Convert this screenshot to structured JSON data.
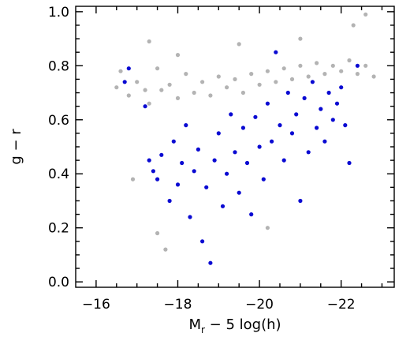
{
  "chart_data": {
    "type": "scatter",
    "xlabel_main": "M",
    "xlabel_sub": "r",
    "xlabel_rest": " − 5 log(h)",
    "ylabel": "g − r",
    "xlim": [
      -15.5,
      -23.3
    ],
    "ylim": [
      -0.02,
      1.02
    ],
    "x_ticks": [
      -16,
      -18,
      -20,
      -22
    ],
    "x_tick_labels": [
      "−16",
      "−18",
      "−20",
      "−22"
    ],
    "y_ticks": [
      0.0,
      0.2,
      0.4,
      0.6,
      0.8,
      1.0
    ],
    "y_tick_labels": [
      "0.0",
      "0.2",
      "0.4",
      "0.6",
      "0.8",
      "1.0"
    ],
    "grid": false,
    "series": [
      {
        "color": "#b3b3b3",
        "points": [
          [
            -16.5,
            0.72
          ],
          [
            -16.6,
            0.78
          ],
          [
            -16.8,
            0.69
          ],
          [
            -17.0,
            0.74
          ],
          [
            -17.2,
            0.71
          ],
          [
            -17.3,
            0.66
          ],
          [
            -17.5,
            0.79
          ],
          [
            -17.6,
            0.71
          ],
          [
            -17.8,
            0.73
          ],
          [
            -18.0,
            0.68
          ],
          [
            -18.2,
            0.77
          ],
          [
            -18.4,
            0.7
          ],
          [
            -18.6,
            0.74
          ],
          [
            -18.8,
            0.69
          ],
          [
            -19.0,
            0.76
          ],
          [
            -19.2,
            0.72
          ],
          [
            -19.4,
            0.75
          ],
          [
            -19.6,
            0.7
          ],
          [
            -19.8,
            0.77
          ],
          [
            -20.0,
            0.73
          ],
          [
            -20.2,
            0.78
          ],
          [
            -20.4,
            0.74
          ],
          [
            -20.6,
            0.79
          ],
          [
            -20.8,
            0.75
          ],
          [
            -21.0,
            0.8
          ],
          [
            -21.2,
            0.76
          ],
          [
            -21.4,
            0.81
          ],
          [
            -21.6,
            0.77
          ],
          [
            -21.8,
            0.8
          ],
          [
            -22.0,
            0.78
          ],
          [
            -22.2,
            0.82
          ],
          [
            -22.4,
            0.77
          ],
          [
            -22.6,
            0.8
          ],
          [
            -22.8,
            0.76
          ],
          [
            -17.3,
            0.89
          ],
          [
            -18.0,
            0.84
          ],
          [
            -19.5,
            0.88
          ],
          [
            -21.0,
            0.9
          ],
          [
            -22.3,
            0.95
          ],
          [
            -22.6,
            0.99
          ],
          [
            -17.5,
            0.18
          ],
          [
            -17.7,
            0.12
          ],
          [
            -20.2,
            0.2
          ],
          [
            -16.9,
            0.38
          ]
        ]
      },
      {
        "color": "#0a0ad2",
        "points": [
          [
            -16.8,
            0.79
          ],
          [
            -16.7,
            0.74
          ],
          [
            -17.2,
            0.65
          ],
          [
            -17.3,
            0.45
          ],
          [
            -17.4,
            0.41
          ],
          [
            -17.5,
            0.38
          ],
          [
            -17.6,
            0.47
          ],
          [
            -17.8,
            0.3
          ],
          [
            -17.9,
            0.52
          ],
          [
            -18.0,
            0.36
          ],
          [
            -18.1,
            0.44
          ],
          [
            -18.2,
            0.58
          ],
          [
            -18.3,
            0.24
          ],
          [
            -18.4,
            0.41
          ],
          [
            -18.5,
            0.49
          ],
          [
            -18.6,
            0.15
          ],
          [
            -18.7,
            0.35
          ],
          [
            -18.8,
            0.07
          ],
          [
            -18.9,
            0.45
          ],
          [
            -19.0,
            0.55
          ],
          [
            -19.1,
            0.28
          ],
          [
            -19.2,
            0.4
          ],
          [
            -19.3,
            0.62
          ],
          [
            -19.4,
            0.48
          ],
          [
            -19.5,
            0.33
          ],
          [
            -19.6,
            0.57
          ],
          [
            -19.7,
            0.44
          ],
          [
            -19.8,
            0.25
          ],
          [
            -19.9,
            0.61
          ],
          [
            -20.0,
            0.5
          ],
          [
            -20.1,
            0.38
          ],
          [
            -20.2,
            0.66
          ],
          [
            -20.3,
            0.52
          ],
          [
            -20.4,
            0.85
          ],
          [
            -20.5,
            0.58
          ],
          [
            -20.6,
            0.45
          ],
          [
            -20.7,
            0.7
          ],
          [
            -20.8,
            0.55
          ],
          [
            -20.9,
            0.62
          ],
          [
            -21.0,
            0.3
          ],
          [
            -21.1,
            0.68
          ],
          [
            -21.2,
            0.48
          ],
          [
            -21.3,
            0.74
          ],
          [
            -21.4,
            0.57
          ],
          [
            -21.5,
            0.64
          ],
          [
            -21.6,
            0.52
          ],
          [
            -21.7,
            0.7
          ],
          [
            -21.8,
            0.6
          ],
          [
            -21.9,
            0.66
          ],
          [
            -22.0,
            0.72
          ],
          [
            -22.1,
            0.58
          ],
          [
            -22.2,
            0.44
          ],
          [
            -22.4,
            0.8
          ]
        ]
      }
    ]
  }
}
